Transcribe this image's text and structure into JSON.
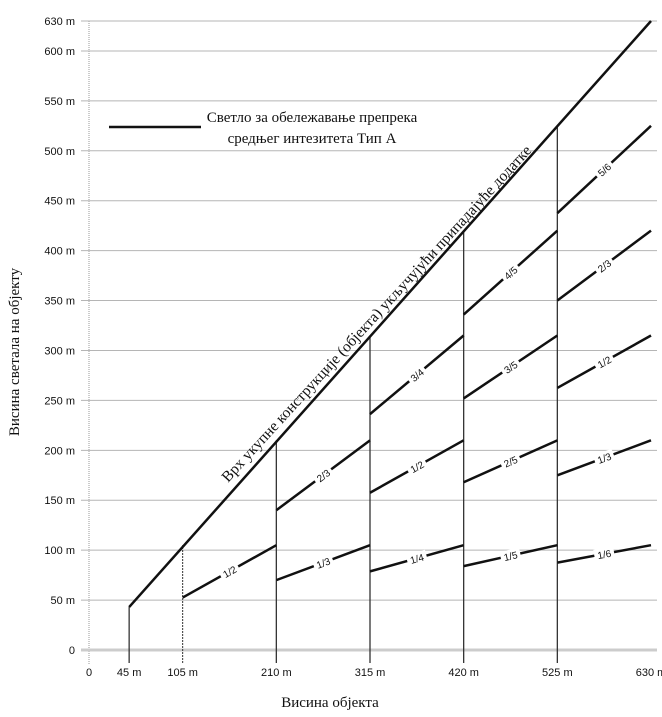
{
  "chart_data": {
    "type": "line",
    "xlabel": "Висина објекта",
    "ylabel": "Висина светала на објекту",
    "xlim": [
      0,
      630
    ],
    "ylim": [
      0,
      630
    ],
    "x_ticks": [
      {
        "value": 0,
        "label": "0"
      },
      {
        "value": 45,
        "label": "45 m"
      },
      {
        "value": 105,
        "label": "105 m"
      },
      {
        "value": 210,
        "label": "210 m"
      },
      {
        "value": 315,
        "label": "315 m"
      },
      {
        "value": 420,
        "label": "420 m"
      },
      {
        "value": 525,
        "label": "525 m"
      },
      {
        "value": 630,
        "label": "630 m"
      }
    ],
    "y_ticks": [
      {
        "value": 0,
        "label": "0"
      },
      {
        "value": 50,
        "label": "50 m"
      },
      {
        "value": 100,
        "label": "100 m"
      },
      {
        "value": 150,
        "label": "150 m"
      },
      {
        "value": 200,
        "label": "200 m"
      },
      {
        "value": 250,
        "label": "250 m"
      },
      {
        "value": 300,
        "label": "300 m"
      },
      {
        "value": 350,
        "label": "350 m"
      },
      {
        "value": 400,
        "label": "400 m"
      },
      {
        "value": 450,
        "label": "450 m"
      },
      {
        "value": 500,
        "label": "500 m"
      },
      {
        "value": 550,
        "label": "550 m"
      },
      {
        "value": 600,
        "label": "600 m"
      },
      {
        "value": 630,
        "label": "630 m"
      }
    ],
    "grid": true,
    "top_line": {
      "label": "Врх укупне конструкције (објекта) укључујући припадајуће додатке",
      "points": [
        [
          45,
          45
        ],
        [
          630,
          630
        ]
      ]
    },
    "verticals": [
      45,
      105,
      210,
      315,
      420,
      525
    ],
    "segments": [
      {
        "label": "1/2",
        "x": [
          105,
          210
        ],
        "y": [
          52.5,
          105
        ]
      },
      {
        "label": "1/3",
        "x": [
          210,
          315
        ],
        "y": [
          70,
          105
        ]
      },
      {
        "label": "2/3",
        "x": [
          210,
          315
        ],
        "y": [
          140,
          210
        ]
      },
      {
        "label": "1/4",
        "x": [
          315,
          420
        ],
        "y": [
          78.75,
          105
        ]
      },
      {
        "label": "1/2",
        "x": [
          315,
          420
        ],
        "y": [
          157.5,
          210
        ]
      },
      {
        "label": "3/4",
        "x": [
          315,
          420
        ],
        "y": [
          236.25,
          315
        ]
      },
      {
        "label": "1/5",
        "x": [
          420,
          525
        ],
        "y": [
          84,
          105
        ]
      },
      {
        "label": "2/5",
        "x": [
          420,
          525
        ],
        "y": [
          168,
          210
        ]
      },
      {
        "label": "3/5",
        "x": [
          420,
          525
        ],
        "y": [
          252,
          315
        ]
      },
      {
        "label": "4/5",
        "x": [
          420,
          525
        ],
        "y": [
          336,
          420
        ]
      },
      {
        "label": "1/6",
        "x": [
          525,
          630
        ],
        "y": [
          87.5,
          105
        ]
      },
      {
        "label": "1/3",
        "x": [
          525,
          630
        ],
        "y": [
          175,
          210
        ]
      },
      {
        "label": "1/2",
        "x": [
          525,
          630
        ],
        "y": [
          262.5,
          315
        ]
      },
      {
        "label": "2/3",
        "x": [
          525,
          630
        ],
        "y": [
          350,
          420
        ]
      },
      {
        "label": "5/6",
        "x": [
          525,
          630
        ],
        "y": [
          437.5,
          525
        ]
      }
    ],
    "legend": {
      "position": "top-left",
      "lines": [
        "Светло за обележавање препрека",
        "средњег интезитета Тип А"
      ]
    }
  }
}
